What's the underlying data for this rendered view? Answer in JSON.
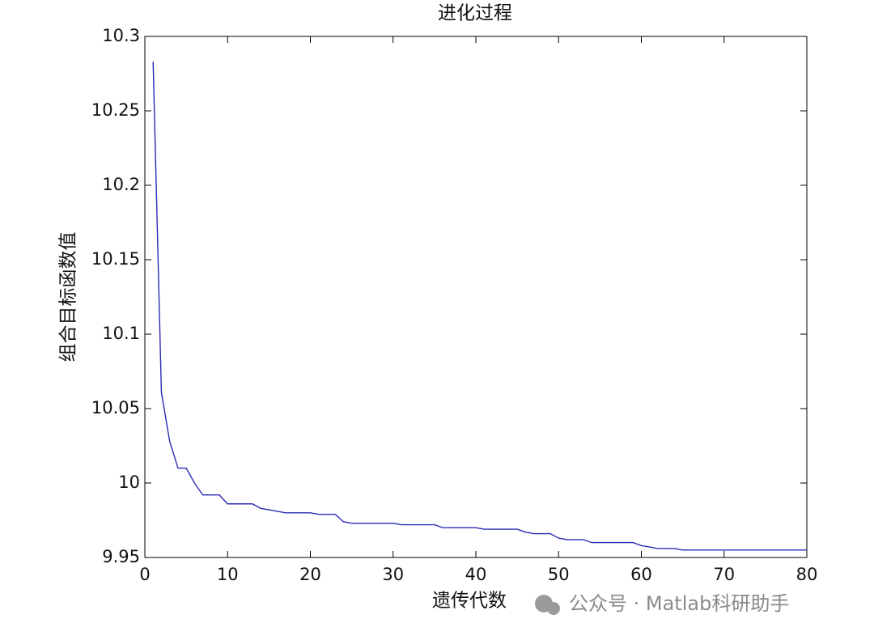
{
  "chart_data": {
    "type": "line",
    "title": "进化过程",
    "x_label": "遗传代数",
    "y_label": "组合目标函数值",
    "x": [
      1,
      2,
      3,
      4,
      5,
      6,
      7,
      8,
      9,
      10,
      11,
      12,
      13,
      14,
      15,
      16,
      17,
      18,
      19,
      20,
      21,
      22,
      23,
      24,
      25,
      26,
      27,
      28,
      29,
      30,
      31,
      32,
      33,
      34,
      35,
      36,
      37,
      38,
      39,
      40,
      41,
      42,
      43,
      44,
      45,
      46,
      47,
      48,
      49,
      50,
      51,
      52,
      53,
      54,
      55,
      56,
      57,
      58,
      59,
      60,
      61,
      62,
      63,
      64,
      65,
      66,
      67,
      68,
      69,
      70,
      71,
      72,
      73,
      74,
      75,
      76,
      77,
      78,
      79,
      80
    ],
    "series": [
      {
        "color": "#2a2ab4",
        "values": [
          10.283,
          10.061,
          10.028,
          10.01,
          10.01,
          10.0,
          9.992,
          9.992,
          9.992,
          9.986,
          9.986,
          9.986,
          9.986,
          9.983,
          9.982,
          9.981,
          9.98,
          9.98,
          9.98,
          9.98,
          9.979,
          9.979,
          9.979,
          9.974,
          9.973,
          9.973,
          9.973,
          9.973,
          9.973,
          9.973,
          9.972,
          9.972,
          9.972,
          9.972,
          9.972,
          9.97,
          9.97,
          9.97,
          9.97,
          9.97,
          9.969,
          9.969,
          9.969,
          9.969,
          9.969,
          9.967,
          9.966,
          9.966,
          9.966,
          9.963,
          9.962,
          9.962,
          9.962,
          9.96,
          9.96,
          9.96,
          9.96,
          9.96,
          9.96,
          9.958,
          9.957,
          9.956,
          9.956,
          9.956,
          9.955,
          9.955,
          9.955,
          9.955,
          9.955,
          9.955,
          9.955,
          9.955,
          9.955,
          9.955,
          9.955,
          9.955,
          9.955,
          9.955,
          9.955,
          9.955
        ]
      }
    ],
    "xlim": [
      0,
      80
    ],
    "xticks": [
      0,
      10,
      20,
      30,
      40,
      50,
      60,
      70,
      80
    ],
    "ylim": [
      9.95,
      10.3
    ],
    "yticks": [
      9.95,
      10,
      10.05,
      10.1,
      10.15,
      10.2,
      10.25,
      10.3
    ],
    "grid": false
  },
  "watermark": "公众号 · Matlab科研助手"
}
